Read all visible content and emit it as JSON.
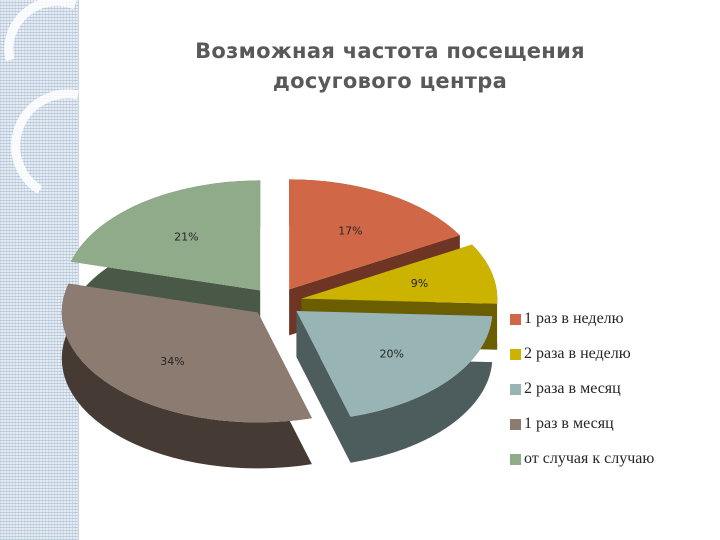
{
  "title": {
    "line1": "Возможная частота посещения",
    "line2": "досугового центра"
  },
  "chart_data": {
    "type": "pie",
    "style": "3d-exploded",
    "title": "Возможная частота посещения досугового центра",
    "legend_position": "right",
    "slices": [
      {
        "name": "1 раз в неделю",
        "value": 17,
        "label": "17%",
        "color": "#d06848",
        "side_color": "#6e3424"
      },
      {
        "name": "2 раза в неделю",
        "value": 9,
        "label": "9%",
        "color": "#ccb300",
        "side_color": "#6b5e00"
      },
      {
        "name": "2 раза в месяц",
        "value": 20,
        "label": "20%",
        "color": "#99b4b4",
        "side_color": "#4d5c5c"
      },
      {
        "name": "1 раз в месяц",
        "value": 34,
        "label": "34%",
        "color": "#8b7b70",
        "side_color": "#463a34"
      },
      {
        "name": "от случая к случаю",
        "value": 21,
        "label": "21%",
        "color": "#90ab8a",
        "side_color": "#4a5848"
      }
    ]
  }
}
